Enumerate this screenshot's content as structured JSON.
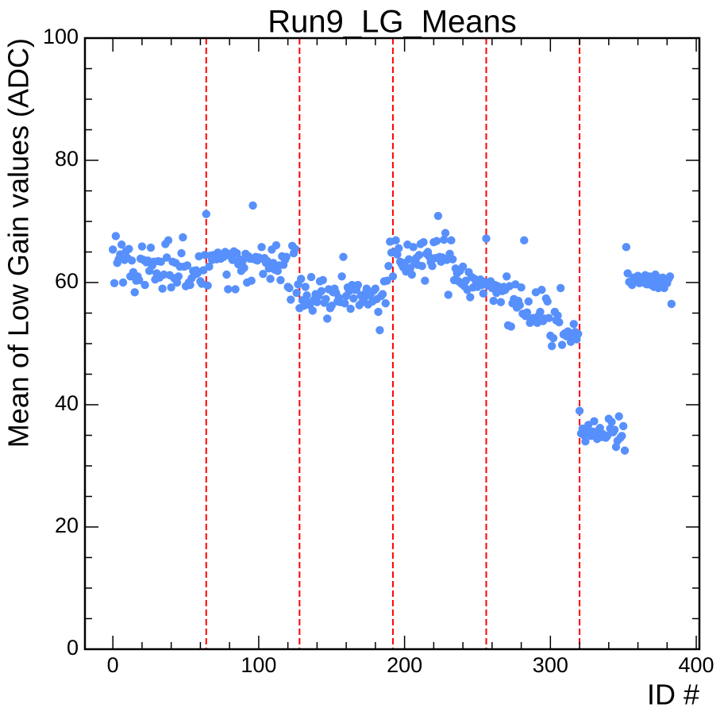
{
  "chart_data": {
    "type": "scatter",
    "title": "Run9_LG_Means",
    "x_label": "ID #",
    "y_label": "Mean of Low Gain values (ADC)",
    "color": "#5790fc",
    "xlim": [
      -19.15,
      402.15
    ],
    "ylim": [
      0,
      100
    ],
    "xticks": [
      0,
      100,
      200,
      300,
      400
    ],
    "yticks": [
      0,
      20,
      40,
      60,
      80,
      100
    ],
    "xminorticks": [
      -20,
      20,
      40,
      60,
      80,
      120,
      140,
      160,
      180,
      220,
      240,
      260,
      280,
      320,
      340,
      360,
      380
    ],
    "yminorticks": [
      5,
      10,
      15,
      25,
      30,
      35,
      45,
      50,
      55,
      65,
      70,
      75,
      85,
      90,
      95
    ],
    "vlines": [
      64,
      128,
      192,
      256,
      320
    ],
    "vline_color": "#ff0000",
    "x": [
      0,
      1,
      2,
      3,
      4,
      5,
      6,
      7,
      8,
      9,
      10,
      11,
      12,
      13,
      14,
      15,
      16,
      17,
      18,
      19,
      20,
      21,
      22,
      23,
      24,
      25,
      26,
      27,
      28,
      29,
      30,
      31,
      32,
      33,
      34,
      35,
      36,
      37,
      38,
      39,
      40,
      41,
      42,
      43,
      44,
      45,
      46,
      47,
      48,
      49,
      50,
      51,
      52,
      53,
      54,
      55,
      56,
      57,
      58,
      59,
      60,
      61,
      62,
      63,
      64,
      65,
      66,
      67,
      68,
      69,
      70,
      71,
      72,
      73,
      74,
      75,
      76,
      77,
      78,
      79,
      80,
      81,
      82,
      83,
      84,
      85,
      86,
      87,
      88,
      89,
      90,
      91,
      92,
      93,
      94,
      95,
      96,
      97,
      98,
      99,
      100,
      101,
      102,
      103,
      104,
      105,
      106,
      107,
      108,
      109,
      110,
      111,
      112,
      113,
      114,
      115,
      116,
      117,
      118,
      119,
      120,
      121,
      122,
      123,
      124,
      125,
      126,
      127,
      128,
      129,
      130,
      131,
      132,
      133,
      134,
      135,
      136,
      137,
      138,
      139,
      140,
      141,
      142,
      143,
      144,
      145,
      146,
      147,
      148,
      149,
      150,
      151,
      152,
      153,
      154,
      155,
      156,
      157,
      158,
      159,
      160,
      161,
      162,
      163,
      164,
      165,
      166,
      167,
      168,
      169,
      170,
      171,
      172,
      173,
      174,
      175,
      176,
      177,
      178,
      179,
      180,
      181,
      182,
      183,
      184,
      185,
      186,
      187,
      188,
      189,
      190,
      191,
      192,
      193,
      194,
      195,
      196,
      197,
      198,
      199,
      200,
      201,
      202,
      203,
      204,
      205,
      206,
      207,
      208,
      209,
      210,
      211,
      212,
      213,
      214,
      215,
      216,
      217,
      218,
      219,
      220,
      221,
      222,
      223,
      224,
      225,
      226,
      227,
      228,
      229,
      230,
      231,
      232,
      233,
      234,
      235,
      236,
      237,
      238,
      239,
      240,
      241,
      242,
      243,
      244,
      245,
      246,
      247,
      248,
      249,
      250,
      251,
      252,
      253,
      254,
      255,
      256,
      257,
      258,
      259,
      260,
      261,
      262,
      263,
      264,
      265,
      266,
      267,
      268,
      269,
      270,
      271,
      272,
      273,
      274,
      275,
      276,
      277,
      278,
      279,
      280,
      281,
      282,
      283,
      284,
      285,
      286,
      287,
      288,
      289,
      290,
      291,
      292,
      293,
      294,
      295,
      296,
      297,
      298,
      299,
      300,
      301,
      302,
      303,
      304,
      305,
      306,
      307,
      308,
      309,
      310,
      311,
      312,
      313,
      314,
      315,
      316,
      317,
      318,
      319,
      320,
      321,
      322,
      323,
      324,
      325,
      326,
      327,
      328,
      329,
      330,
      331,
      332,
      333,
      334,
      335,
      336,
      337,
      338,
      339,
      340,
      341,
      342,
      343,
      344,
      345,
      346,
      347,
      348,
      349,
      350,
      351,
      352,
      353,
      354,
      355,
      356,
      357,
      358,
      359,
      360,
      361,
      362,
      363,
      364,
      365,
      366,
      367,
      368,
      369,
      370,
      371,
      372,
      373,
      374,
      375,
      376,
      377,
      378,
      379,
      380,
      381,
      382,
      383
    ],
    "values": [
      65.4,
      59.9,
      67.6,
      63.2,
      63.8,
      64.6,
      66.2,
      60.0,
      63.7,
      65.1,
      64.0,
      65.5,
      61.0,
      63.6,
      61.7,
      58.4,
      60.3,
      61.0,
      60.4,
      63.9,
      65.9,
      63.7,
      59.6,
      63.3,
      63.6,
      61.9,
      65.7,
      62.8,
      63.4,
      60.5,
      61.5,
      63.5,
      60.8,
      63.4,
      59.0,
      61.3,
      66.3,
      64.1,
      66.9,
      61.2,
      59.2,
      63.4,
      60.7,
      63.2,
      60.0,
      61.0,
      62.6,
      64.8,
      67.4,
      62.6,
      59.4,
      62.8,
      60.0,
      59.6,
      60.7,
      61.9,
      61.3,
      62.0,
      61.5,
      64.3,
      60.2,
      59.8,
      62.0,
      64.5,
      71.2,
      59.5,
      62.6,
      64.4,
      63.7,
      64.5,
      64.2,
      63.8,
      64.9,
      64.6,
      63.9,
      64.3,
      64.2,
      65.0,
      61.3,
      58.9,
      64.7,
      64.2,
      63.7,
      65.1,
      58.9,
      64.8,
      63.0,
      63.8,
      61.9,
      63.5,
      62.4,
      64.7,
      60.0,
      64.3,
      63.9,
      60.3,
      72.6,
      63.8,
      64.2,
      63.6,
      64.1,
      63.9,
      65.8,
      61.4,
      64.0,
      63.2,
      63.5,
      62.3,
      60.6,
      65.4,
      63.2,
      62.1,
      66.1,
      61.9,
      62.8,
      60.4,
      64.3,
      62.9,
      63.7,
      64.2,
      59.3,
      59.1,
      57.2,
      66.0,
      64.8,
      65.5,
      58.3,
      59.7,
      55.8,
      60.6,
      57.1,
      56.2,
      59.3,
      57.9,
      56.7,
      56.3,
      60.9,
      55.4,
      57.2,
      58.1,
      56.8,
      57.8,
      60.2,
      58.6,
      60.4,
      56.7,
      57.3,
      54.1,
      58.9,
      55.8,
      56.2,
      58.4,
      59.0,
      58.3,
      56.9,
      57.5,
      56.8,
      61.0,
      64.2,
      56.6,
      57.8,
      59.2,
      58.6,
      55.7,
      59.6,
      57.4,
      58.8,
      58.9,
      59.6,
      56.3,
      57.9,
      56.8,
      57.1,
      58.2,
      59.0,
      56.4,
      57.9,
      58.3,
      56.9,
      58.7,
      59.0,
      57.3,
      55.2,
      52.2,
      57.8,
      58.1,
      60.2,
      56.6,
      60.3,
      62.7,
      66.7,
      64.9,
      61.0,
      65.0,
      66.9,
      64.6,
      65.6,
      63.4,
      63.0,
      62.5,
      63.2,
      61.8,
      66.2,
      63.8,
      62.4,
      61.3,
      65.8,
      63.2,
      64.0,
      62.9,
      64.5,
      66.3,
      62.7,
      66.6,
      60.3,
      64.7,
      65.0,
      64.2,
      63.3,
      62.7,
      66.6,
      64.0,
      66.8,
      70.9,
      64.2,
      63.4,
      64.1,
      67.0,
      68.1,
      63.7,
      58.0,
      64.7,
      66.9,
      63.8,
      60.4,
      62.3,
      61.5,
      60.2,
      61.9,
      59.8,
      62.6,
      59.4,
      60.3,
      58.8,
      61.7,
      57.6,
      60.9,
      59.2,
      60.6,
      59.7,
      59.3,
      60.2,
      60.5,
      59.6,
      58.2,
      60.1,
      67.2,
      59.5,
      60.0,
      60.2,
      59.1,
      57.0,
      59.6,
      58.3,
      59.4,
      58.7,
      56.8,
      58.6,
      59.3,
      58.8,
      61.0,
      53.0,
      59.4,
      52.8,
      56.6,
      57.3,
      59.7,
      55.9,
      57.0,
      56.3,
      59.2,
      54.9,
      66.9,
      54.5,
      55.1,
      56.9,
      53.4,
      53.6,
      54.2,
      53.9,
      58.4,
      53.4,
      54.6,
      55.2,
      58.8,
      53.7,
      54.1,
      57.4,
      56.9,
      54.2,
      51.3,
      49.6,
      50.9,
      55.2,
      53.8,
      54.6,
      53.5,
      59.1,
      49.8,
      51.5,
      51.7,
      51.2,
      52.0,
      51.8,
      50.3,
      51.3,
      53.2,
      51.9,
      50.7,
      51.6,
      39.0,
      35.3,
      36.1,
      35.0,
      34.0,
      35.7,
      36.7,
      35.4,
      34.9,
      35.6,
      37.3,
      35.0,
      34.4,
      35.8,
      36.2,
      34.7,
      35.2,
      35.0,
      34.6,
      34.9,
      37.7,
      36.1,
      37.2,
      35.5,
      35.9,
      33.1,
      34.1,
      38.1,
      34.6,
      34.9,
      36.5,
      32.5,
      65.8,
      61.5,
      60.1,
      60.0,
      59.6,
      60.8,
      60.5,
      60.9,
      61.1,
      59.9,
      60.3,
      60.4,
      60.0,
      61.2,
      59.7,
      60.9,
      61.0,
      59.6,
      60.6,
      59.3,
      61.3,
      60.2,
      59.1,
      60.7,
      59.4,
      60.8,
      59.1,
      60.0,
      59.9,
      60.6,
      61.0,
      56.5
    ]
  }
}
